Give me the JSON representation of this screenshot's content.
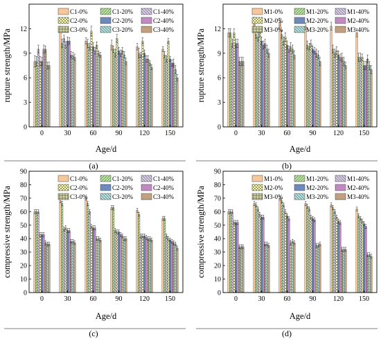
{
  "figure": {
    "panel_labels": [
      "(a)",
      "(b)",
      "(c)",
      "(d)"
    ]
  },
  "colors": {
    "C1": "#f6c79a",
    "C2": "#ffffb0",
    "C3": "#d6d6a0",
    "M1": "#f6c79a",
    "M2": "#ffffb0",
    "M3": "#d6d6a0",
    "s20_1": "#b8e0a0",
    "s20_2": "#7fa7e8",
    "s20_3": "#a8e0dc",
    "s40_1": "#d8c8e8",
    "s40_2": "#f0a8f0",
    "s40_3": "#f0c49a"
  },
  "chart_data": [
    {
      "type": "bar",
      "panel": "(a)",
      "title": "",
      "xlabel": "Age/d",
      "ylabel": "rupture strength/MPa",
      "categories": [
        "0",
        "30",
        "60",
        "90",
        "120",
        "150"
      ],
      "ylim": [
        0,
        15
      ],
      "yticks": [
        0,
        3,
        6,
        9,
        12
      ],
      "legend_position": "top",
      "series": [
        {
          "name": "C1-0%",
          "values": [
            8.0,
            12.0,
            10.5,
            10.0,
            9.8,
            9.5
          ],
          "err": [
            0.7,
            0.3,
            0.4,
            0.6,
            0.4,
            0.3
          ]
        },
        {
          "name": "C1-20%",
          "values": [
            8.0,
            10.2,
            10.2,
            9.5,
            9.0,
            8.8
          ],
          "err": [
            0.6,
            0.5,
            0.5,
            0.4,
            0.6,
            0.4
          ]
        },
        {
          "name": "C1-40%",
          "values": [
            9.5,
            10.8,
            9.8,
            9.0,
            8.8,
            8.3
          ],
          "err": [
            0.5,
            0.4,
            0.4,
            0.5,
            0.3,
            0.4
          ]
        },
        {
          "name": "C2-0%",
          "values": [
            8.0,
            10.0,
            11.7,
            10.8,
            10.5,
            10.5
          ],
          "err": [
            0.6,
            0.4,
            0.6,
            0.5,
            0.4,
            0.3
          ]
        },
        {
          "name": "C2-20%",
          "values": [
            8.0,
            10.5,
            9.8,
            9.3,
            9.0,
            8.3
          ],
          "err": [
            0.5,
            0.5,
            0.5,
            0.4,
            0.4,
            0.3
          ]
        },
        {
          "name": "C2-40%",
          "values": [
            9.5,
            10.5,
            9.3,
            9.0,
            8.3,
            7.8
          ],
          "err": [
            0.5,
            0.4,
            0.4,
            0.4,
            0.4,
            0.4
          ]
        },
        {
          "name": "C3-0%",
          "values": [
            9.5,
            8.8,
            10.0,
            9.3,
            8.3,
            7.8
          ],
          "err": [
            0.4,
            0.4,
            0.4,
            0.4,
            0.4,
            0.5
          ]
        },
        {
          "name": "C3-20%",
          "values": [
            7.5,
            8.7,
            9.0,
            8.8,
            7.8,
            7.0
          ],
          "err": [
            0.4,
            0.4,
            0.3,
            0.4,
            0.3,
            0.5
          ]
        },
        {
          "name": "C3-40%",
          "values": [
            7.5,
            8.5,
            8.8,
            8.0,
            7.3,
            6.0
          ],
          "err": [
            0.4,
            0.4,
            0.3,
            0.4,
            0.3,
            0.4
          ]
        }
      ]
    },
    {
      "type": "bar",
      "panel": "(b)",
      "title": "",
      "xlabel": "Age/d",
      "ylabel": "rupture strength/MPa",
      "categories": [
        "0",
        "30",
        "60",
        "90",
        "120",
        "150"
      ],
      "ylim": [
        0,
        15
      ],
      "yticks": [
        0,
        3,
        6,
        9,
        12
      ],
      "legend_position": "top",
      "series": [
        {
          "name": "M1-0%",
          "values": [
            11.5,
            12.8,
            12.8,
            12.3,
            12.3,
            11.5
          ],
          "err": [
            0.5,
            0.6,
            0.5,
            0.4,
            0.5,
            0.5
          ]
        },
        {
          "name": "M1-20%",
          "values": [
            11.5,
            11.3,
            11.3,
            10.0,
            9.5,
            8.5
          ],
          "err": [
            0.5,
            0.5,
            0.5,
            0.5,
            0.5,
            0.5
          ]
        },
        {
          "name": "M1-40%",
          "values": [
            10.2,
            11.0,
            10.5,
            9.8,
            9.0,
            8.5
          ],
          "err": [
            0.5,
            0.5,
            0.5,
            0.4,
            0.5,
            0.5
          ]
        },
        {
          "name": "M2-0%",
          "values": [
            11.5,
            11.5,
            11.0,
            10.2,
            9.3,
            8.5
          ],
          "err": [
            0.5,
            0.5,
            0.5,
            0.4,
            0.5,
            0.4
          ]
        },
        {
          "name": "M2-20%",
          "values": [
            10.2,
            10.5,
            10.0,
            9.5,
            8.8,
            7.5
          ],
          "err": [
            0.5,
            0.5,
            0.5,
            0.4,
            0.5,
            0.5
          ]
        },
        {
          "name": "M2-40%",
          "values": [
            10.2,
            10.0,
            9.5,
            9.3,
            8.5,
            7.5
          ],
          "err": [
            0.5,
            0.5,
            0.4,
            0.4,
            0.4,
            0.5
          ]
        },
        {
          "name": "M3-0%",
          "values": [
            8.0,
            10.2,
            9.8,
            9.0,
            8.5,
            8.3
          ],
          "err": [
            0.5,
            0.5,
            0.5,
            0.5,
            0.5,
            0.5
          ]
        },
        {
          "name": "M3-20%",
          "values": [
            8.0,
            9.5,
            9.5,
            8.8,
            8.0,
            7.5
          ],
          "err": [
            0.5,
            0.5,
            0.5,
            0.5,
            0.5,
            0.5
          ]
        },
        {
          "name": "M3-40%",
          "values": [
            8.0,
            9.0,
            8.8,
            8.0,
            7.5,
            7.0
          ],
          "err": [
            0.5,
            0.5,
            0.5,
            0.5,
            0.4,
            0.5
          ]
        }
      ]
    },
    {
      "type": "bar",
      "panel": "(c)",
      "title": "",
      "xlabel": "Age/d",
      "ylabel": "compressive strength/MPa",
      "categories": [
        "0",
        "30",
        "60",
        "90",
        "120",
        "150"
      ],
      "ylim": [
        0,
        90
      ],
      "yticks": [
        0,
        10,
        20,
        30,
        40,
        50,
        60,
        70,
        80,
        90
      ],
      "legend_position": "top",
      "series": [
        {
          "name": "C1-0%",
          "values": [
            60,
            68,
            70,
            63,
            61,
            55
          ],
          "err": [
            1.5,
            1.5,
            1.5,
            1.5,
            1.5,
            1.5
          ]
        },
        {
          "name": "C1-20%",
          "values": [
            60,
            66,
            66,
            63,
            58,
            55
          ],
          "err": [
            1.5,
            1.5,
            1.5,
            1.5,
            1.5,
            1.5
          ]
        },
        {
          "name": "C1-40%",
          "values": [
            60,
            47,
            60,
            46,
            42,
            42
          ],
          "err": [
            1.5,
            1.5,
            1.5,
            1.5,
            1.5,
            1.5
          ]
        },
        {
          "name": "C2-0%",
          "values": [
            43,
            48,
            49,
            45,
            42,
            40
          ],
          "err": [
            1.5,
            1.5,
            1.5,
            1.5,
            1.5,
            1.5
          ]
        },
        {
          "name": "C2-20%",
          "values": [
            43,
            46,
            48,
            45,
            42,
            39
          ],
          "err": [
            1.5,
            1.5,
            1.5,
            1.5,
            1.5,
            1.5
          ]
        },
        {
          "name": "C2-40%",
          "values": [
            43,
            46,
            48,
            43,
            41,
            38
          ],
          "err": [
            1.5,
            1.5,
            1.5,
            1.5,
            1.5,
            1.5
          ]
        },
        {
          "name": "C3-0%",
          "values": [
            37,
            38,
            40,
            42,
            40,
            37
          ],
          "err": [
            1.5,
            1.5,
            1.5,
            1.5,
            1.5,
            1.5
          ]
        },
        {
          "name": "C3-20%",
          "values": [
            36,
            38,
            40,
            40,
            40,
            36
          ],
          "err": [
            1.5,
            1.5,
            1.5,
            1.5,
            1.5,
            1.5
          ]
        },
        {
          "name": "C3-40%",
          "values": [
            36,
            37,
            39,
            40,
            39,
            33
          ],
          "err": [
            1.5,
            1.5,
            1.5,
            1.5,
            1.5,
            1.5
          ]
        }
      ]
    },
    {
      "type": "bar",
      "panel": "(d)",
      "title": "",
      "xlabel": "Age/d",
      "ylabel": "compressive strength/MPa",
      "categories": [
        "0",
        "30",
        "60",
        "90",
        "120",
        "150"
      ],
      "ylim": [
        0,
        90
      ],
      "yticks": [
        0,
        10,
        20,
        30,
        40,
        50,
        60,
        70,
        80,
        90
      ],
      "legend_position": "top",
      "series": [
        {
          "name": "M1-0%",
          "values": [
            60,
            66,
            70,
            66,
            65,
            62
          ],
          "err": [
            1.5,
            1.5,
            1.5,
            1.5,
            1.5,
            1.5
          ]
        },
        {
          "name": "M1-20%",
          "values": [
            60,
            65,
            68,
            64,
            63,
            57
          ],
          "err": [
            1.5,
            1.5,
            1.5,
            1.5,
            1.5,
            1.5
          ]
        },
        {
          "name": "M1-40%",
          "values": [
            60,
            62,
            65,
            62,
            60,
            55
          ],
          "err": [
            1.5,
            1.5,
            1.5,
            1.5,
            1.5,
            1.5
          ]
        },
        {
          "name": "M2-0%",
          "values": [
            52,
            58,
            60,
            56,
            56,
            53
          ],
          "err": [
            1.5,
            1.5,
            1.5,
            1.5,
            1.5,
            1.5
          ]
        },
        {
          "name": "M2-20%",
          "values": [
            52,
            56,
            57,
            55,
            53,
            51
          ],
          "err": [
            1.5,
            1.5,
            1.5,
            1.5,
            1.5,
            1.5
          ]
        },
        {
          "name": "M2-40%",
          "values": [
            52,
            56,
            55,
            54,
            52,
            49
          ],
          "err": [
            1.5,
            1.5,
            1.5,
            1.5,
            1.5,
            1.5
          ]
        },
        {
          "name": "M3-0%",
          "values": [
            34,
            36,
            37,
            35,
            32,
            28
          ],
          "err": [
            1.5,
            1.5,
            1.5,
            1.5,
            1.5,
            1.5
          ]
        },
        {
          "name": "M3-20%",
          "values": [
            34,
            36,
            38,
            35,
            32,
            28
          ],
          "err": [
            1.5,
            1.5,
            1.5,
            1.5,
            1.5,
            1.5
          ]
        },
        {
          "name": "M3-40%",
          "values": [
            34,
            35,
            37,
            36,
            32,
            27
          ],
          "err": [
            1.5,
            1.5,
            1.5,
            1.5,
            1.5,
            1.5
          ]
        }
      ]
    }
  ]
}
